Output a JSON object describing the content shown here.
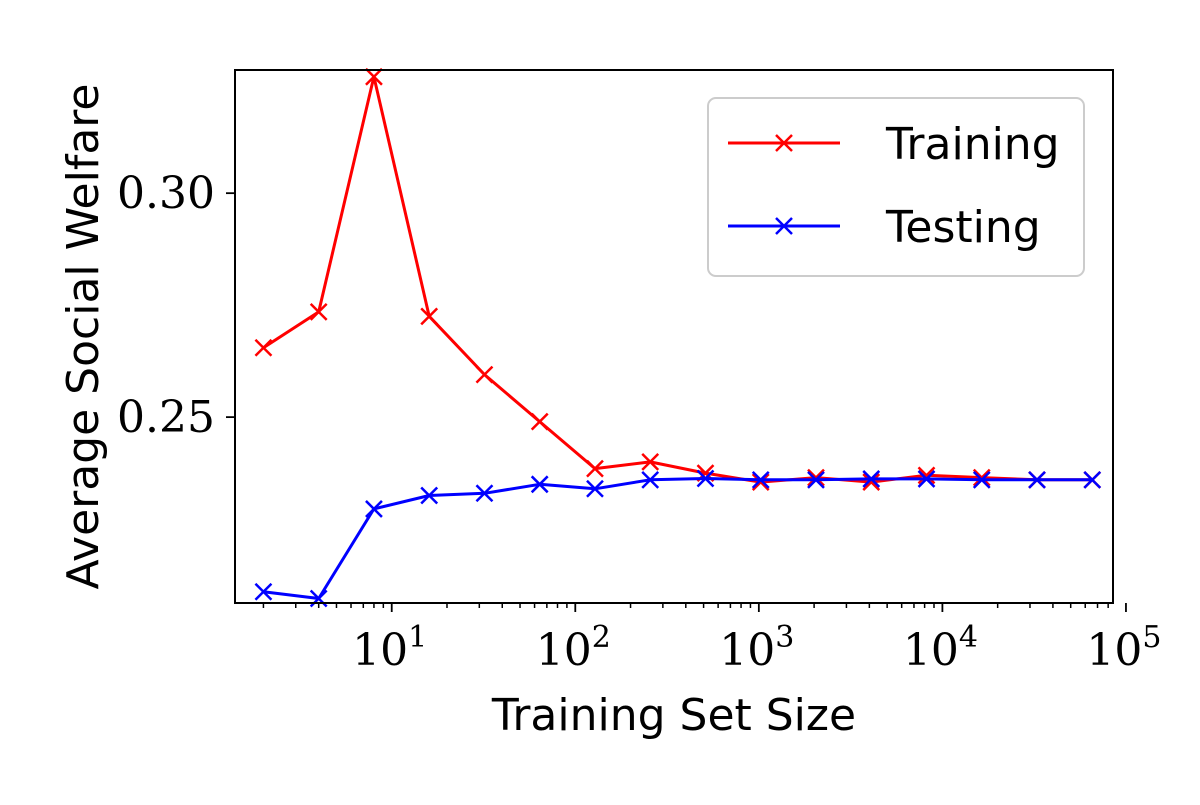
{
  "chart_data": {
    "type": "line",
    "title": "",
    "xlabel": "Training Set Size",
    "ylabel": "Average Social Welfare",
    "xscale": "log",
    "x": [
      2,
      4,
      8,
      16,
      32,
      64,
      128,
      256,
      512,
      1024,
      2048,
      4096,
      8192,
      16384,
      32768,
      65536
    ],
    "xlim": [
      1.4,
      85000
    ],
    "ylim": [
      0.2085,
      0.3275
    ],
    "xticks": [
      {
        "value": 10,
        "base": "10",
        "exp": "1"
      },
      {
        "value": 100,
        "base": "10",
        "exp": "2"
      },
      {
        "value": 1000,
        "base": "10",
        "exp": "3"
      },
      {
        "value": 10000,
        "base": "10",
        "exp": "4"
      },
      {
        "value": 100000,
        "base": "10",
        "exp": "5"
      }
    ],
    "yticks": [
      {
        "value": 0.25,
        "label": "0.25"
      },
      {
        "value": 0.3,
        "label": "0.30"
      }
    ],
    "grid": false,
    "legend_position": "top-right",
    "series": [
      {
        "name": "Training",
        "color": "#ff0000",
        "marker": "x",
        "values": [
          0.2655,
          0.2735,
          0.326,
          0.2725,
          0.2595,
          0.249,
          0.2385,
          0.24,
          0.2375,
          0.2355,
          0.2365,
          0.2355,
          0.237,
          0.2365,
          0.236,
          0.236
        ]
      },
      {
        "name": "Testing",
        "color": "#0000ff",
        "marker": "x",
        "values": [
          0.211,
          0.2095,
          0.2295,
          0.2325,
          0.233,
          0.235,
          0.234,
          0.236,
          0.2363,
          0.236,
          0.236,
          0.2362,
          0.2362,
          0.236,
          0.236,
          0.236
        ]
      }
    ]
  }
}
